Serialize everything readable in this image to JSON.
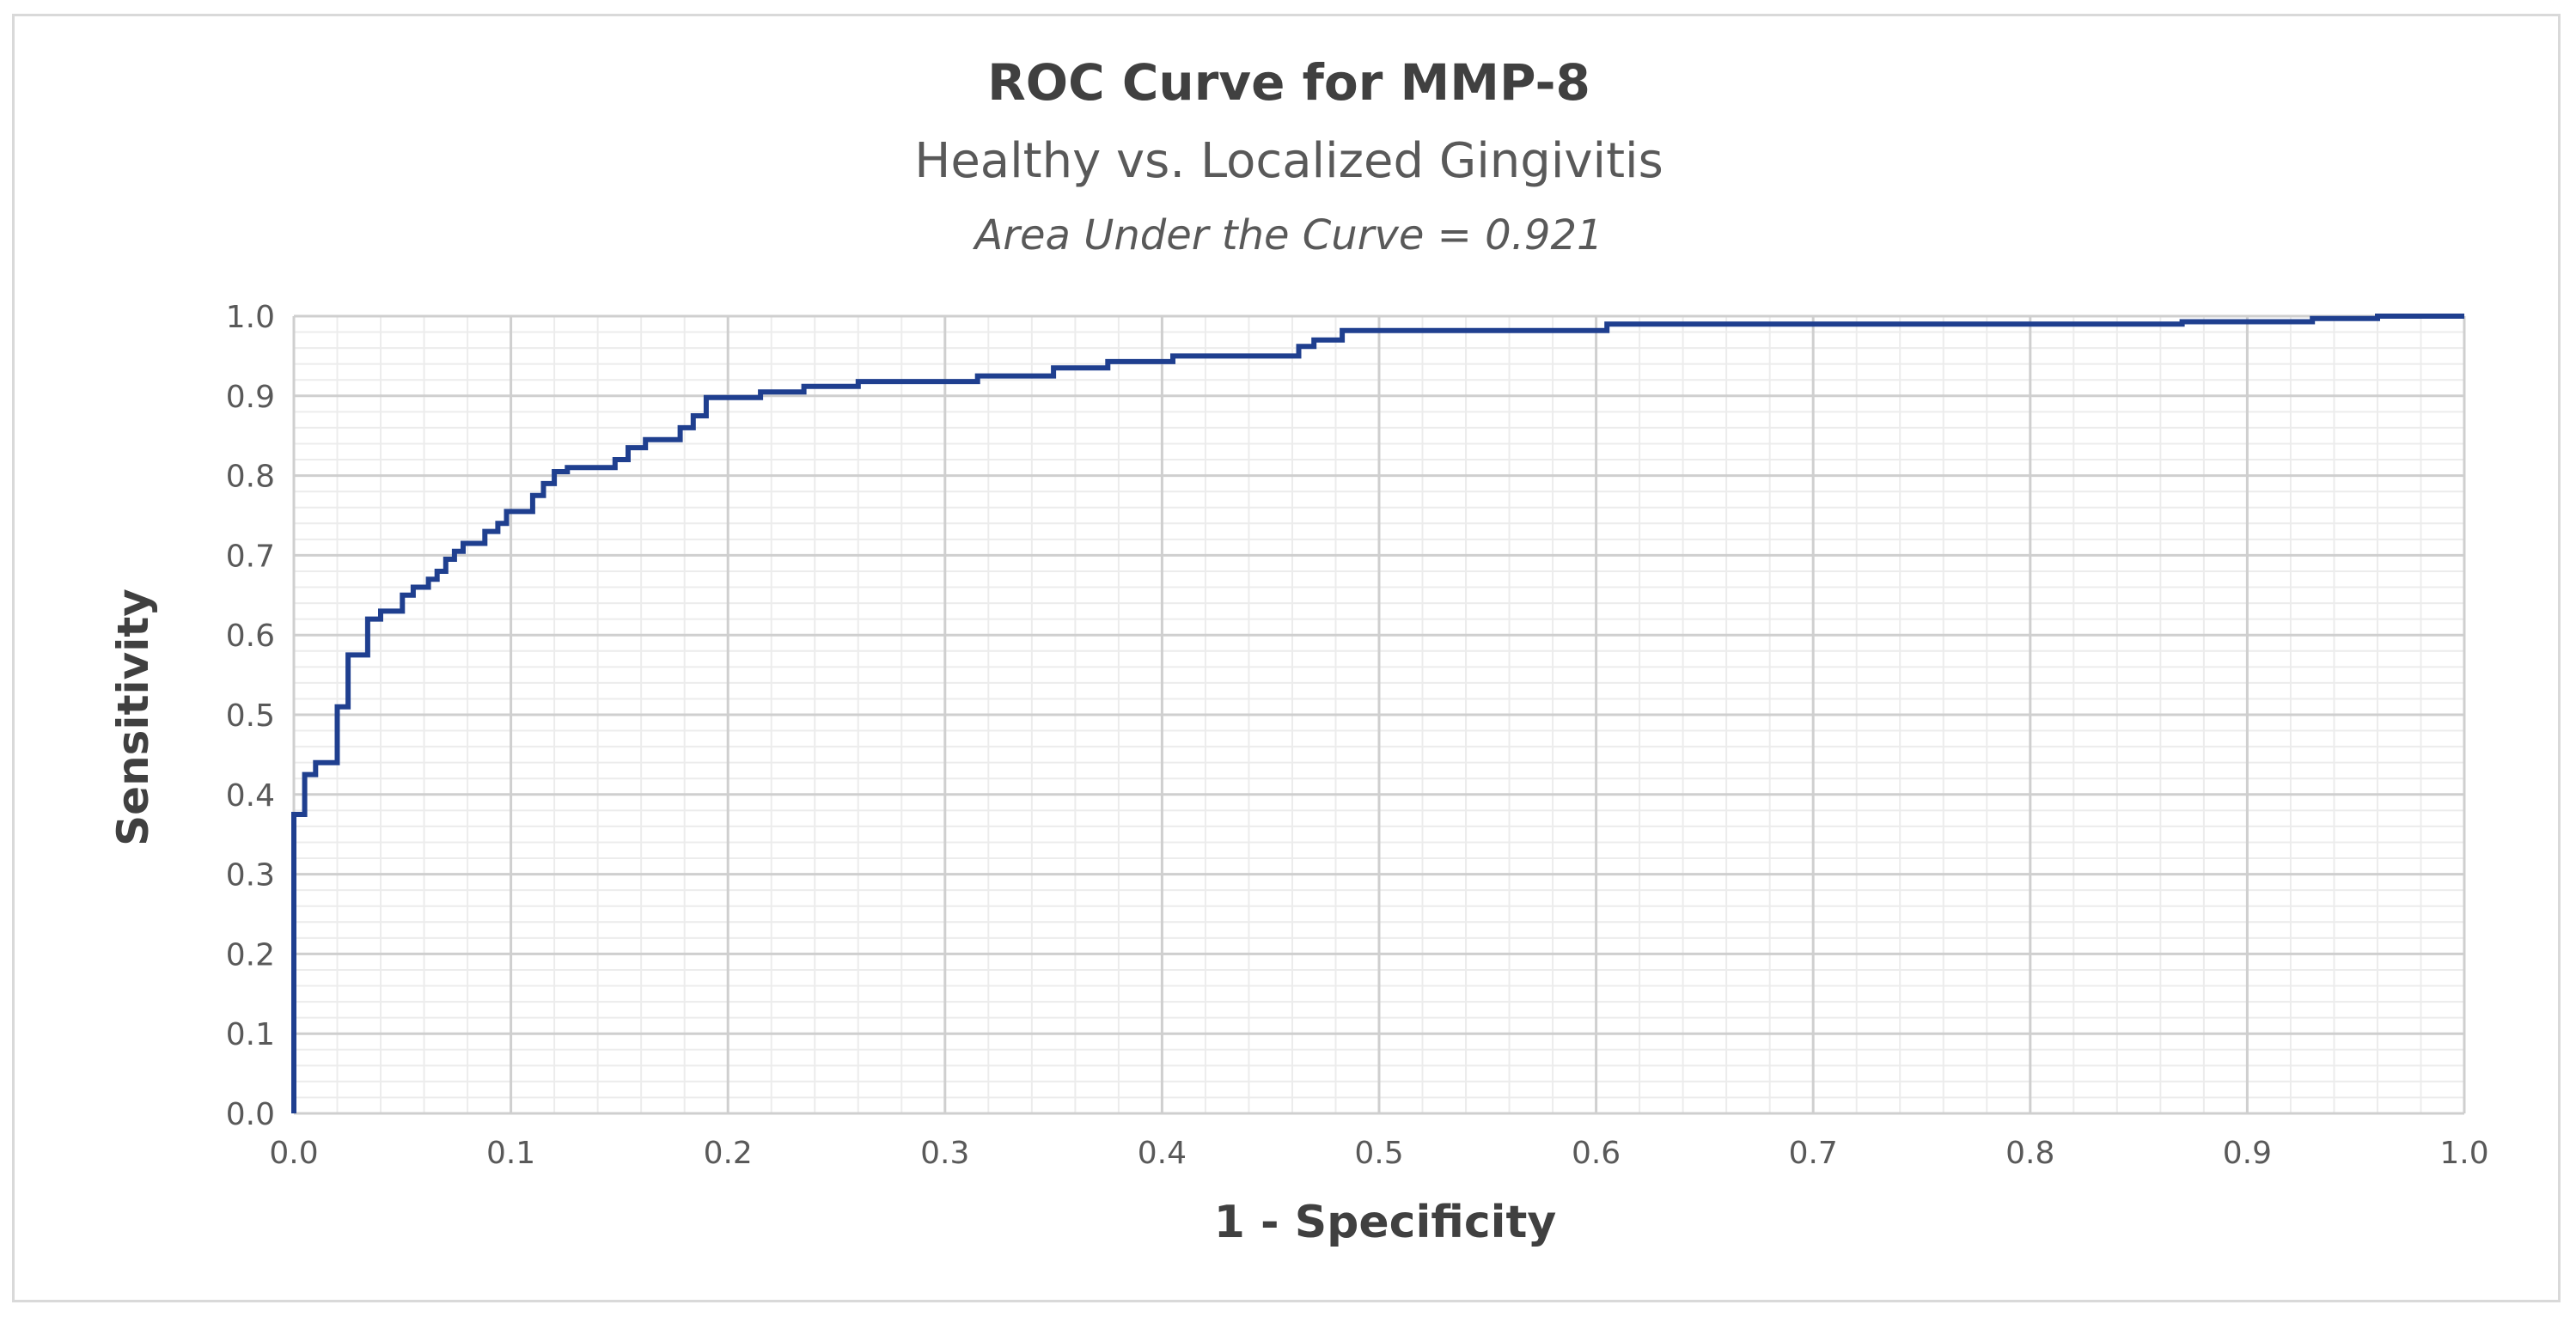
{
  "chart_data": {
    "type": "line",
    "title": "ROC Curve for MMP-8",
    "subtitle": "Healthy vs. Localized Gingivitis",
    "annotation": "Area Under the Curve = 0.921",
    "xlabel": "1 - Specificity",
    "ylabel": "Sensitivity",
    "xlim": [
      0,
      1
    ],
    "ylim": [
      0,
      1
    ],
    "x_ticks": [
      "0.0",
      "0.1",
      "0.2",
      "0.3",
      "0.4",
      "0.5",
      "0.6",
      "0.7",
      "0.8",
      "0.9",
      "1.0"
    ],
    "y_ticks": [
      "0.0",
      "0.1",
      "0.2",
      "0.3",
      "0.4",
      "0.5",
      "0.6",
      "0.7",
      "0.8",
      "0.9",
      "1.0"
    ],
    "grid": true,
    "line_color": "#1f3f8f",
    "series": [
      {
        "name": "ROC",
        "points": [
          [
            0.0,
            0.0
          ],
          [
            0.0,
            0.375
          ],
          [
            0.005,
            0.375
          ],
          [
            0.005,
            0.425
          ],
          [
            0.01,
            0.425
          ],
          [
            0.01,
            0.44
          ],
          [
            0.02,
            0.44
          ],
          [
            0.02,
            0.51
          ],
          [
            0.025,
            0.51
          ],
          [
            0.025,
            0.575
          ],
          [
            0.034,
            0.575
          ],
          [
            0.034,
            0.62
          ],
          [
            0.04,
            0.62
          ],
          [
            0.04,
            0.63
          ],
          [
            0.05,
            0.63
          ],
          [
            0.05,
            0.65
          ],
          [
            0.055,
            0.65
          ],
          [
            0.055,
            0.66
          ],
          [
            0.062,
            0.66
          ],
          [
            0.062,
            0.67
          ],
          [
            0.066,
            0.67
          ],
          [
            0.066,
            0.68
          ],
          [
            0.07,
            0.68
          ],
          [
            0.07,
            0.695
          ],
          [
            0.074,
            0.695
          ],
          [
            0.074,
            0.705
          ],
          [
            0.078,
            0.705
          ],
          [
            0.078,
            0.715
          ],
          [
            0.088,
            0.715
          ],
          [
            0.088,
            0.73
          ],
          [
            0.094,
            0.73
          ],
          [
            0.094,
            0.74
          ],
          [
            0.098,
            0.74
          ],
          [
            0.098,
            0.755
          ],
          [
            0.11,
            0.755
          ],
          [
            0.11,
            0.775
          ],
          [
            0.115,
            0.775
          ],
          [
            0.115,
            0.79
          ],
          [
            0.12,
            0.79
          ],
          [
            0.12,
            0.805
          ],
          [
            0.126,
            0.805
          ],
          [
            0.126,
            0.81
          ],
          [
            0.148,
            0.81
          ],
          [
            0.148,
            0.82
          ],
          [
            0.154,
            0.82
          ],
          [
            0.154,
            0.835
          ],
          [
            0.162,
            0.835
          ],
          [
            0.162,
            0.845
          ],
          [
            0.178,
            0.845
          ],
          [
            0.178,
            0.86
          ],
          [
            0.184,
            0.86
          ],
          [
            0.184,
            0.875
          ],
          [
            0.19,
            0.875
          ],
          [
            0.19,
            0.898
          ],
          [
            0.215,
            0.898
          ],
          [
            0.215,
            0.905
          ],
          [
            0.235,
            0.905
          ],
          [
            0.235,
            0.912
          ],
          [
            0.26,
            0.912
          ],
          [
            0.26,
            0.918
          ],
          [
            0.315,
            0.918
          ],
          [
            0.315,
            0.925
          ],
          [
            0.35,
            0.925
          ],
          [
            0.35,
            0.935
          ],
          [
            0.375,
            0.935
          ],
          [
            0.375,
            0.943
          ],
          [
            0.405,
            0.943
          ],
          [
            0.405,
            0.95
          ],
          [
            0.463,
            0.95
          ],
          [
            0.463,
            0.962
          ],
          [
            0.47,
            0.962
          ],
          [
            0.47,
            0.97
          ],
          [
            0.483,
            0.97
          ],
          [
            0.483,
            0.982
          ],
          [
            0.605,
            0.982
          ],
          [
            0.605,
            0.99
          ],
          [
            0.87,
            0.99
          ],
          [
            0.87,
            0.993
          ],
          [
            0.93,
            0.993
          ],
          [
            0.93,
            0.997
          ],
          [
            0.96,
            0.997
          ],
          [
            0.96,
            1.0
          ],
          [
            1.0,
            1.0
          ]
        ]
      }
    ]
  }
}
